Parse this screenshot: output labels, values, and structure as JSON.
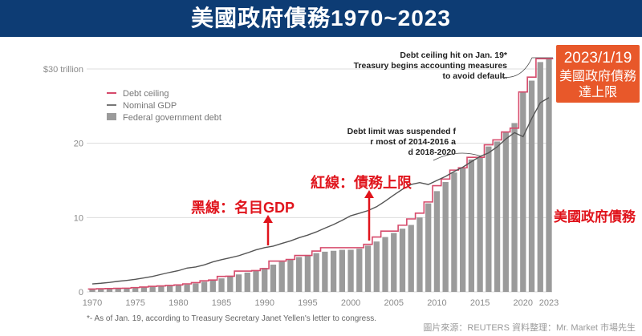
{
  "banner": {
    "title": "美國政府債務1970~2023",
    "bg": "#0d3c74"
  },
  "callout": {
    "date": "2023/1/19",
    "text": "美國政府債務達上限",
    "bg": "#e8582a"
  },
  "labels": {
    "side": "美國政府債務",
    "black_line": "黑線：名目GDP",
    "red_line": "紅線：債務上限"
  },
  "footnote": "*- As of Jan. 19, according to Treasury Secretary Janet Yellen's letter to congress.",
  "credit": "圖片來源：REUTERS  資料整理：Mr. Market 市場先生",
  "colors": {
    "bars": "#9b9b9b",
    "ceiling": "#d64a6b",
    "gdp": "#555555",
    "annotation": "#e0141c"
  },
  "chart_data": {
    "type": "bar",
    "title": "美國政府債務1970~2023",
    "unit": "trillion dollars",
    "ylim": [
      0,
      30
    ],
    "yticks": [
      0,
      10,
      20,
      30
    ],
    "ytick_labels": [
      "0",
      "10",
      "20",
      "$30 trillion"
    ],
    "xticks": [
      1970,
      1975,
      1980,
      1985,
      1990,
      1995,
      2000,
      2005,
      2010,
      2015,
      2020,
      2023
    ],
    "grid": true,
    "legend_position": "top-left",
    "legend": [
      "Debt ceiling",
      "Nominal GDP",
      "Federal government debt"
    ],
    "years": [
      1970,
      1971,
      1972,
      1973,
      1974,
      1975,
      1976,
      1977,
      1978,
      1979,
      1980,
      1981,
      1982,
      1983,
      1984,
      1985,
      1986,
      1987,
      1988,
      1989,
      1990,
      1991,
      1992,
      1993,
      1994,
      1995,
      1996,
      1997,
      1998,
      1999,
      2000,
      2001,
      2002,
      2003,
      2004,
      2005,
      2006,
      2007,
      2008,
      2009,
      2010,
      2011,
      2012,
      2013,
      2014,
      2015,
      2016,
      2017,
      2018,
      2019,
      2020,
      2021,
      2022,
      2023
    ],
    "series": [
      {
        "name": "Federal government debt",
        "type": "bar",
        "values": [
          0.37,
          0.41,
          0.44,
          0.47,
          0.48,
          0.54,
          0.63,
          0.71,
          0.78,
          0.83,
          0.91,
          1.0,
          1.14,
          1.37,
          1.56,
          1.82,
          2.12,
          2.35,
          2.6,
          2.86,
          3.23,
          3.67,
          4.06,
          4.41,
          4.69,
          4.97,
          5.22,
          5.41,
          5.53,
          5.66,
          5.67,
          5.81,
          6.23,
          6.78,
          7.38,
          7.93,
          8.51,
          9.01,
          10.02,
          11.91,
          13.56,
          14.79,
          16.07,
          16.74,
          17.82,
          18.15,
          19.57,
          20.24,
          21.52,
          22.72,
          26.95,
          28.43,
          30.93,
          31.38
        ]
      },
      {
        "name": "Debt ceiling",
        "type": "step",
        "values": [
          0.38,
          0.43,
          0.45,
          0.48,
          0.5,
          0.58,
          0.65,
          0.75,
          0.8,
          0.87,
          0.94,
          1.08,
          1.25,
          1.49,
          1.6,
          2.08,
          2.11,
          2.8,
          2.8,
          2.87,
          3.12,
          4.15,
          4.15,
          4.37,
          4.9,
          4.9,
          5.5,
          5.95,
          5.95,
          5.95,
          5.95,
          5.95,
          6.4,
          7.38,
          8.18,
          8.18,
          8.97,
          9.82,
          10.6,
          12.1,
          14.29,
          15.19,
          16.39,
          16.7,
          18.11,
          18.11,
          19.8,
          20.46,
          21.52,
          22.03,
          26.9,
          28.9,
          31.38,
          31.38
        ]
      },
      {
        "name": "Nominal GDP",
        "type": "line",
        "values": [
          1.07,
          1.16,
          1.28,
          1.43,
          1.55,
          1.69,
          1.88,
          2.09,
          2.36,
          2.63,
          2.86,
          3.21,
          3.35,
          3.64,
          4.04,
          4.34,
          4.59,
          4.87,
          5.25,
          5.66,
          5.96,
          6.16,
          6.52,
          6.86,
          7.29,
          7.64,
          8.07,
          8.58,
          9.06,
          9.63,
          10.25,
          10.58,
          10.94,
          11.46,
          12.21,
          13.04,
          13.81,
          14.45,
          14.71,
          14.45,
          15.0,
          15.54,
          16.2,
          16.78,
          17.52,
          18.22,
          18.71,
          19.52,
          20.58,
          21.43,
          20.89,
          23.32,
          25.46,
          26.14
        ]
      }
    ],
    "annotations": [
      "Debt ceiling hit on Jan. 19*. Treasury begins accounting measures to avoid default.",
      "Debt limit was suspended for most of 2014-2016 and 2018-2020"
    ]
  }
}
